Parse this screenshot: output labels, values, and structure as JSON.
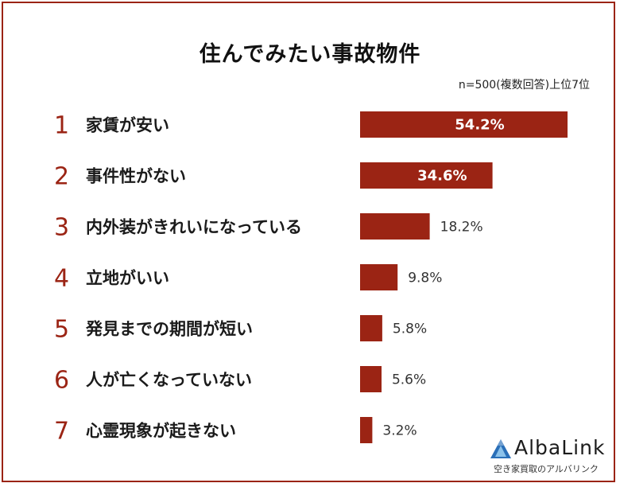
{
  "chart_data": {
    "type": "bar",
    "orientation": "horizontal",
    "title": "住んでみたい事故物件",
    "note": "n=500(複数回答)上位7位",
    "categories": [
      "家賃が安い",
      "事件性がない",
      "内外装がきれいになっている",
      "立地がいい",
      "発見までの期間が短い",
      "人が亡くなっていない",
      "心霊現象が起きない"
    ],
    "ranks": [
      "1",
      "2",
      "3",
      "4",
      "5",
      "6",
      "7"
    ],
    "values": [
      54.2,
      34.6,
      18.2,
      9.8,
      5.8,
      5.6,
      3.2
    ],
    "value_labels": [
      "54.2%",
      "34.6%",
      "18.2%",
      "9.8%",
      "5.8%",
      "5.6%",
      "3.2%"
    ],
    "xlim": [
      0,
      54.2
    ],
    "grid": false,
    "legend": "none"
  },
  "colors": {
    "bar": "#9b2414",
    "rank": "#9b2414",
    "frame": "#9b2414",
    "logo_accent": "#2a6fb8"
  },
  "brand": {
    "name": "AlbaLink",
    "tagline": "空き家買取のアルバリンク",
    "icon": "albalink-mountain-logo"
  }
}
